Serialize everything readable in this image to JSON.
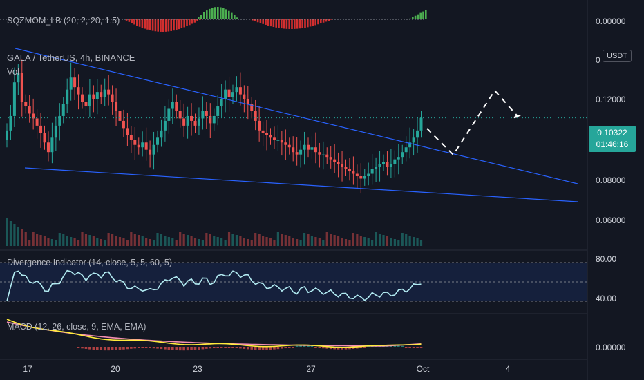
{
  "symbol": {
    "title": "GALA / TetherUS, 4h, BINANCE",
    "volume_label": "Vol",
    "currency_badge": "USDT"
  },
  "indicators": {
    "top": "SQZMOM_LB (20, 2, 20, 1.5)",
    "divergence": "Divergence Indicator (14, close, 5, 5, 60, 5)",
    "macd": "MACD (12, 26, close, 9, EMA, EMA)"
  },
  "last_price": {
    "value": "0.10322",
    "countdown": "01:46:16"
  },
  "price_axis": {
    "ticks": [
      "0.12000",
      "0.08000",
      "0.06000"
    ],
    "top_zero": "0.00000",
    "partial_label": "0",
    "divergence_ticks": [
      "80.00",
      "40.00"
    ],
    "macd_tick": "0.00000"
  },
  "time_axis": {
    "labels": [
      "17",
      "20",
      "23",
      "27",
      "Oct",
      "4"
    ]
  },
  "colors": {
    "background": "#131722",
    "up": "#26a69a",
    "down": "#ef5350",
    "trendline": "#2962ff",
    "divergence_line": "#b2ebf2",
    "macd_line": "#ffeb3b",
    "signal_line": "#f48fb1",
    "squeeze_green": "#4caf50",
    "squeeze_red": "#d32f2f"
  },
  "chart_data": {
    "type": "candlestick",
    "timeframe": "4h",
    "ylim": [
      0.05,
      0.135
    ],
    "x_labels": [
      "17",
      "20",
      "23",
      "27",
      "Oct",
      "4"
    ],
    "candles_close_series": [
      0.098,
      0.104,
      0.118,
      0.122,
      0.11,
      0.108,
      0.105,
      0.103,
      0.1,
      0.097,
      0.093,
      0.089,
      0.095,
      0.1,
      0.104,
      0.109,
      0.115,
      0.12,
      0.116,
      0.113,
      0.11,
      0.108,
      0.113,
      0.111,
      0.114,
      0.112,
      0.115,
      0.113,
      0.11,
      0.106,
      0.102,
      0.099,
      0.096,
      0.094,
      0.092,
      0.091,
      0.093,
      0.09,
      0.088,
      0.092,
      0.095,
      0.098,
      0.102,
      0.107,
      0.11,
      0.106,
      0.103,
      0.1,
      0.104,
      0.102,
      0.1,
      0.103,
      0.106,
      0.104,
      0.101,
      0.104,
      0.108,
      0.111,
      0.115,
      0.112,
      0.114,
      0.116,
      0.113,
      0.111,
      0.109,
      0.106,
      0.102,
      0.098,
      0.097,
      0.096,
      0.095,
      0.094,
      0.094,
      0.093,
      0.092,
      0.091,
      0.089,
      0.088,
      0.09,
      0.092,
      0.09,
      0.091,
      0.089,
      0.088,
      0.088,
      0.087,
      0.086,
      0.085,
      0.084,
      0.083,
      0.082,
      0.081,
      0.08,
      0.079,
      0.078,
      0.079,
      0.08,
      0.082,
      0.083,
      0.084,
      0.085,
      0.083,
      0.084,
      0.086,
      0.087,
      0.089,
      0.091,
      0.093,
      0.095,
      0.098,
      0.1032
    ],
    "last_price": 0.10322,
    "divergence_ylim": [
      30,
      90
    ],
    "divergence_levels": [
      80,
      40
    ],
    "macd_zero": 0
  }
}
